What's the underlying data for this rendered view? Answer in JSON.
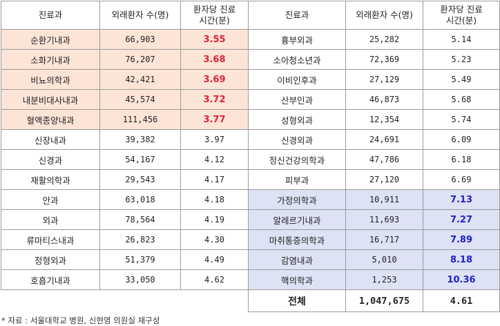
{
  "headers": {
    "dept": "진료과",
    "patients": "외래환자 수(명)",
    "time_line1": "환자당 진료",
    "time_line2": "시간(분)"
  },
  "left": [
    {
      "dept": "순환기내과",
      "patients": "66,903",
      "time": "3.55",
      "highlight": "red"
    },
    {
      "dept": "소화기내과",
      "patients": "76,207",
      "time": "3.68",
      "highlight": "red"
    },
    {
      "dept": "비뇨의학과",
      "patients": "42,421",
      "time": "3.69",
      "highlight": "red"
    },
    {
      "dept": "내분비대사내과",
      "patients": "45,574",
      "time": "3.72",
      "highlight": "red"
    },
    {
      "dept": "혈액종양내과",
      "patients": "111,456",
      "time": "3.77",
      "highlight": "red"
    },
    {
      "dept": "신장내과",
      "patients": "39,382",
      "time": "3.97",
      "highlight": ""
    },
    {
      "dept": "신경과",
      "patients": "54,167",
      "time": "4.12",
      "highlight": ""
    },
    {
      "dept": "재활의학과",
      "patients": "29,543",
      "time": "4.17",
      "highlight": ""
    },
    {
      "dept": "안과",
      "patients": "63,018",
      "time": "4.18",
      "highlight": ""
    },
    {
      "dept": "외과",
      "patients": "78,564",
      "time": "4.19",
      "highlight": ""
    },
    {
      "dept": "류마티스내과",
      "patients": "26,823",
      "time": "4.30",
      "highlight": ""
    },
    {
      "dept": "정형외과",
      "patients": "51,379",
      "time": "4.49",
      "highlight": ""
    },
    {
      "dept": "호흡기내과",
      "patients": "33,050",
      "time": "4.62",
      "highlight": ""
    }
  ],
  "right": [
    {
      "dept": "흉부외과",
      "patients": "25,282",
      "time": "5.14",
      "highlight": ""
    },
    {
      "dept": "소아청소년과",
      "patients": "72,369",
      "time": "5.23",
      "highlight": ""
    },
    {
      "dept": "이비인후과",
      "patients": "27,129",
      "time": "5.49",
      "highlight": ""
    },
    {
      "dept": "산부인과",
      "patients": "46,873",
      "time": "5.68",
      "highlight": ""
    },
    {
      "dept": "성형외과",
      "patients": "12,354",
      "time": "5.74",
      "highlight": ""
    },
    {
      "dept": "신경외과",
      "patients": "24,691",
      "time": "6.09",
      "highlight": ""
    },
    {
      "dept": "정신건강의학과",
      "patients": "47,786",
      "time": "6.18",
      "highlight": ""
    },
    {
      "dept": "피부과",
      "patients": "27,120",
      "time": "6.69",
      "highlight": ""
    },
    {
      "dept": "가정의학과",
      "patients": "10,911",
      "time": "7.13",
      "highlight": "blue"
    },
    {
      "dept": "알레르기내과",
      "patients": "11,693",
      "time": "7.27",
      "highlight": "blue"
    },
    {
      "dept": "마취통증의학과",
      "patients": "16,717",
      "time": "7.89",
      "highlight": "blue"
    },
    {
      "dept": "감염내과",
      "patients": "5,010",
      "time": "8.18",
      "highlight": "blue"
    },
    {
      "dept": "핵의학과",
      "patients": "1,253",
      "time": "10.36",
      "highlight": "blue"
    }
  ],
  "total": {
    "label": "전체",
    "patients": "1,047,675",
    "time": "4.61"
  },
  "footnote": "* 자료 : 서울대학교 병원, 신현영 의원실 재구성",
  "colors": {
    "red_fill": "#fce4d6",
    "red_text": "#e0203a",
    "blue_fill": "#dde2f5",
    "blue_text": "#2020c8",
    "border": "#9a9a9a"
  }
}
